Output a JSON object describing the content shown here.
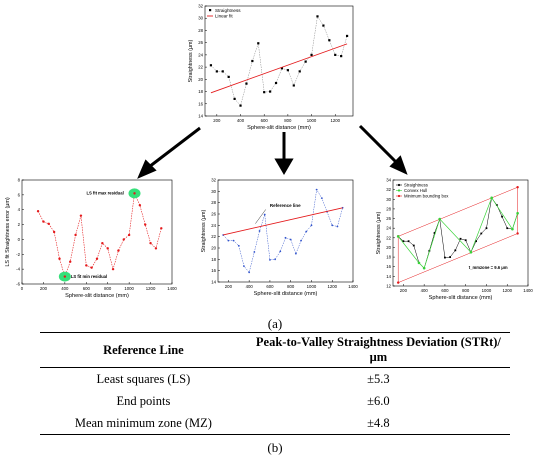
{
  "figure_label_a": "(a)",
  "figure_label_b": "(b)",
  "charts": {
    "top": {
      "type": "scatter-line",
      "xlabel": "Sphere-slit distance (mm)",
      "ylabel": "Straightness (μm)",
      "x_ticks": [
        "200",
        "400",
        "600",
        "800",
        "1000",
        "1200"
      ],
      "y_ticks": [
        "14",
        "16",
        "18",
        "20",
        "22",
        "24",
        "26",
        "28",
        "30",
        "32"
      ],
      "legend": [
        "Straightness",
        "Linear fit"
      ]
    },
    "left": {
      "type": "line",
      "xlabel": "Sphere-slit distance (mm)",
      "ylabel": "LS fit Straightness error (μm)",
      "x_ticks": [
        "0",
        "200",
        "400",
        "600",
        "800",
        "1000",
        "1200",
        "1400"
      ],
      "y_ticks": [
        "-6",
        "-4",
        "-2",
        "0",
        "2",
        "4",
        "6",
        "8"
      ],
      "annot_max": "LS fit max residual",
      "annot_min": "LS fit min residual"
    },
    "middle": {
      "type": "line",
      "xlabel": "Sphere-slit distance (mm)",
      "ylabel": "Straightness (μm)",
      "x_ticks": [
        "200",
        "400",
        "600",
        "800",
        "1000",
        "1200",
        "1400"
      ],
      "y_ticks": [
        "14",
        "16",
        "18",
        "20",
        "22",
        "24",
        "26",
        "28",
        "30",
        "32"
      ],
      "annot": "Reference line"
    },
    "right": {
      "type": "line",
      "xlabel": "Sphere-slit distance (mm)",
      "ylabel": "Straightness (μm)",
      "x_ticks": [
        "200",
        "400",
        "600",
        "800",
        "1000",
        "1200",
        "1400"
      ],
      "y_ticks": [
        "12",
        "14",
        "16",
        "18",
        "20",
        "22",
        "24",
        "26",
        "28",
        "30",
        "32",
        "34"
      ],
      "legend": [
        "Straightness",
        "Convex Hull",
        "Minimum bounding box"
      ],
      "annot": "t_mmzone = 9.6 μm"
    }
  },
  "chart_data": [
    {
      "type": "scatter",
      "name": "top",
      "x": [
        150,
        200,
        250,
        300,
        350,
        400,
        450,
        500,
        550,
        600,
        650,
        700,
        750,
        800,
        850,
        900,
        950,
        1000,
        1050,
        1100,
        1150,
        1200,
        1250,
        1300
      ],
      "series": [
        {
          "name": "Straightness",
          "values": [
            22.3,
            21.3,
            21.3,
            20.4,
            16.8,
            15.7,
            19.3,
            23.0,
            25.9,
            17.9,
            18.0,
            19.4,
            21.8,
            21.5,
            19.0,
            21.3,
            22.9,
            24.0,
            30.3,
            28.8,
            26.4,
            24.0,
            23.8,
            27.1
          ]
        },
        {
          "name": "Linear fit",
          "line": [
            [
              150,
              17.8
            ],
            [
              1300,
              25.8
            ]
          ]
        }
      ],
      "xlim": [
        100,
        1350
      ],
      "ylim": [
        14,
        32
      ]
    },
    {
      "type": "line",
      "name": "left",
      "x": [
        150,
        200,
        250,
        300,
        350,
        400,
        450,
        500,
        550,
        600,
        650,
        700,
        750,
        800,
        850,
        900,
        950,
        1000,
        1050,
        1100,
        1150,
        1200,
        1250,
        1300
      ],
      "values": [
        3.8,
        2.4,
        2.1,
        1.0,
        -2.6,
        -5.0,
        -3.0,
        0.6,
        3.2,
        -3.5,
        -3.8,
        -2.6,
        -0.5,
        -1.2,
        -4.0,
        -1.5,
        0.0,
        0.6,
        6.2,
        4.6,
        2.0,
        -0.5,
        -1.2,
        1.5
      ],
      "xlim": [
        0,
        1400
      ],
      "ylim": [
        -6,
        8
      ]
    },
    {
      "type": "line",
      "name": "middle",
      "x": [
        150,
        200,
        250,
        300,
        350,
        400,
        450,
        500,
        550,
        600,
        650,
        700,
        750,
        800,
        850,
        900,
        950,
        1000,
        1050,
        1100,
        1150,
        1200,
        1250,
        1300
      ],
      "values": [
        22.3,
        21.3,
        21.3,
        20.4,
        16.8,
        15.7,
        19.3,
        23.0,
        25.9,
        17.9,
        18.0,
        19.4,
        21.8,
        21.5,
        19.0,
        21.3,
        22.9,
        24.0,
        30.3,
        28.8,
        26.4,
        24.0,
        23.8,
        27.1
      ],
      "reference_line": [
        [
          150,
          22.3
        ],
        [
          1300,
          27.1
        ]
      ],
      "xlim": [
        100,
        1400
      ],
      "ylim": [
        14,
        32
      ]
    },
    {
      "type": "line",
      "name": "right",
      "x": [
        150,
        200,
        250,
        300,
        350,
        400,
        450,
        500,
        550,
        600,
        650,
        700,
        750,
        800,
        850,
        900,
        950,
        1000,
        1050,
        1100,
        1150,
        1200,
        1250,
        1300
      ],
      "series": [
        {
          "name": "Straightness",
          "values": [
            22.3,
            21.3,
            21.3,
            20.4,
            16.8,
            15.7,
            19.3,
            23.0,
            25.9,
            17.9,
            18.0,
            19.4,
            21.8,
            21.5,
            19.0,
            21.3,
            22.9,
            24.0,
            30.3,
            28.8,
            26.4,
            24.0,
            23.8,
            27.1
          ]
        },
        {
          "name": "Convex Hull",
          "points": [
            [
              150,
              22.3
            ],
            [
              350,
              16.8
            ],
            [
              400,
              15.7
            ],
            [
              550,
              25.9
            ],
            [
              850,
              19.0
            ],
            [
              1050,
              30.3
            ],
            [
              1250,
              23.8
            ],
            [
              1300,
              27.1
            ]
          ]
        },
        {
          "name": "Minimum bounding box",
          "points": [
            [
              150,
              22.3
            ],
            [
              1300,
              32.5
            ],
            [
              1300,
              22.9
            ],
            [
              150,
              12.7
            ]
          ]
        }
      ],
      "xlim": [
        100,
        1400
      ],
      "ylim": [
        12,
        34
      ]
    }
  ],
  "table": {
    "headers": [
      "Reference Line",
      "Peak-to-Valley Straightness Deviation (STRt)/μm"
    ],
    "rows": [
      [
        "Least squares (LS)",
        "±5.3"
      ],
      [
        "End points",
        "±6.0"
      ],
      [
        "Mean minimum zone (MZ)",
        "±4.8"
      ]
    ]
  },
  "colors": {
    "line_red": "#e41a1c",
    "convex_green": "#39d339",
    "point_dark": "#000000",
    "blue_line": "#3355cc",
    "highlight": "#36e07a"
  }
}
